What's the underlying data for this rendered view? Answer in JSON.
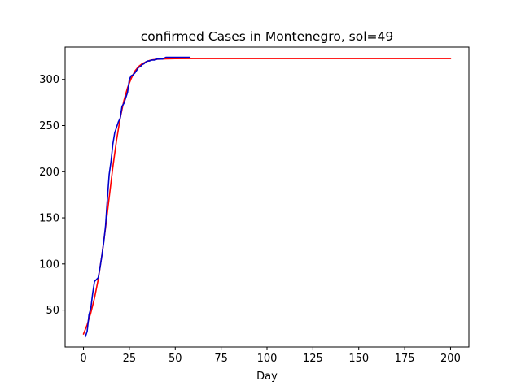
{
  "chart_data": {
    "type": "line",
    "title": "confirmed Cases in Montenegro, sol=49",
    "xlabel": "Day",
    "ylabel": "",
    "xlim": [
      -10,
      210
    ],
    "ylim": [
      10,
      335
    ],
    "x_ticks": [
      0,
      25,
      50,
      75,
      100,
      125,
      150,
      175,
      200
    ],
    "y_ticks": [
      50,
      100,
      150,
      200,
      250,
      300
    ],
    "grid": false,
    "series": [
      {
        "color": "#ff0000",
        "kind": "fit",
        "points": [
          [
            0,
            24
          ],
          [
            2,
            34
          ],
          [
            4,
            47
          ],
          [
            6,
            63
          ],
          [
            8,
            83
          ],
          [
            10,
            109
          ],
          [
            12,
            139
          ],
          [
            14,
            172
          ],
          [
            16,
            205
          ],
          [
            18,
            234
          ],
          [
            20,
            258
          ],
          [
            22,
            277
          ],
          [
            24,
            291
          ],
          [
            26,
            301
          ],
          [
            28,
            309
          ],
          [
            30,
            314
          ],
          [
            32,
            317
          ],
          [
            34,
            319
          ],
          [
            36,
            320.5
          ],
          [
            38,
            321.3
          ],
          [
            40,
            321.8
          ],
          [
            45,
            322.3
          ],
          [
            50,
            322.5
          ],
          [
            60,
            322.6
          ],
          [
            80,
            322.6
          ],
          [
            120,
            322.6
          ],
          [
            160,
            322.6
          ],
          [
            200,
            322.6
          ]
        ]
      },
      {
        "color": "#0000cc",
        "kind": "observed",
        "points": [
          [
            1,
            21
          ],
          [
            2,
            27
          ],
          [
            3,
            45
          ],
          [
            4,
            52
          ],
          [
            5,
            68
          ],
          [
            6,
            81
          ],
          [
            7,
            83
          ],
          [
            8,
            85
          ],
          [
            9,
            96
          ],
          [
            10,
            109
          ],
          [
            11,
            123
          ],
          [
            12,
            141
          ],
          [
            13,
            170
          ],
          [
            14,
            197
          ],
          [
            15,
            211
          ],
          [
            16,
            230
          ],
          [
            17,
            242
          ],
          [
            18,
            248
          ],
          [
            19,
            254
          ],
          [
            20,
            258
          ],
          [
            21,
            271
          ],
          [
            22,
            274
          ],
          [
            23,
            280
          ],
          [
            24,
            286
          ],
          [
            25,
            300
          ],
          [
            26,
            304
          ],
          [
            27,
            305
          ],
          [
            28,
            307
          ],
          [
            29,
            310
          ],
          [
            30,
            313
          ],
          [
            31,
            314
          ],
          [
            32,
            316
          ],
          [
            33,
            317
          ],
          [
            34,
            319
          ],
          [
            35,
            320
          ],
          [
            36,
            320
          ],
          [
            37,
            321
          ],
          [
            38,
            321
          ],
          [
            39,
            321
          ],
          [
            40,
            322
          ],
          [
            41,
            322
          ],
          [
            42,
            322
          ],
          [
            43,
            322
          ],
          [
            44,
            323
          ],
          [
            45,
            324
          ],
          [
            46,
            324
          ],
          [
            47,
            324
          ],
          [
            48,
            324
          ],
          [
            49,
            324
          ],
          [
            50,
            324
          ],
          [
            51,
            324
          ],
          [
            52,
            324
          ],
          [
            53,
            324
          ],
          [
            54,
            324
          ],
          [
            55,
            324
          ],
          [
            56,
            324
          ],
          [
            57,
            324
          ],
          [
            58,
            324
          ]
        ]
      }
    ]
  }
}
